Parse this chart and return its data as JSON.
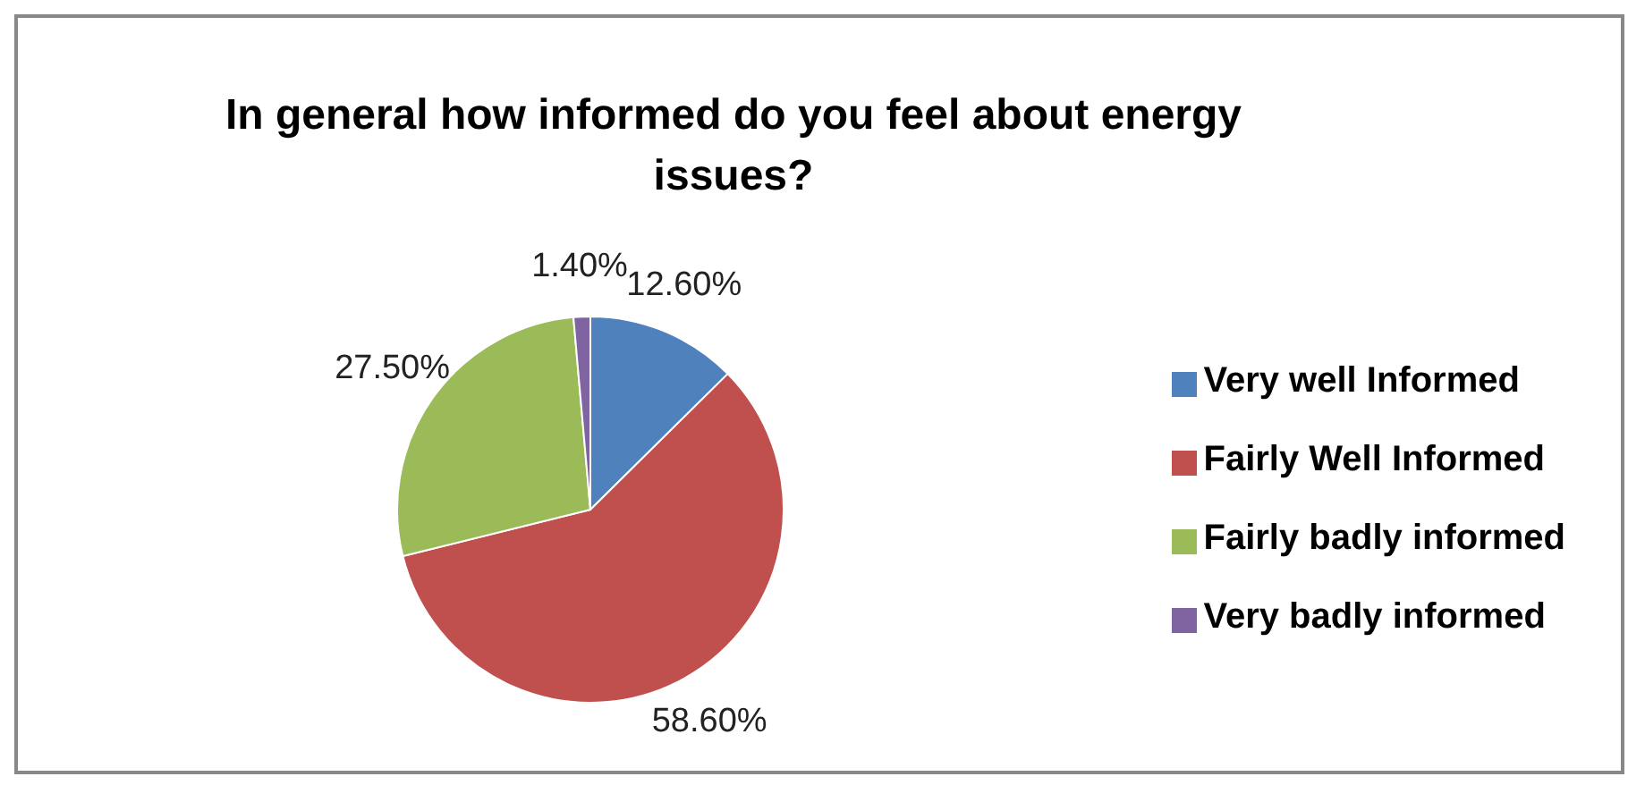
{
  "chart_data": {
    "type": "pie",
    "title": "In general how informed do you feel about energy issues?",
    "categories": [
      "Very well Informed",
      "Fairly Well Informed",
      "Fairly badly informed",
      "Very badly informed"
    ],
    "values": [
      12.6,
      58.6,
      27.5,
      1.4
    ],
    "value_labels": [
      "12.60%",
      "58.60%",
      "27.50%",
      "1.40%"
    ],
    "colors": [
      "#4f81bd",
      "#c0504d",
      "#9bbb59",
      "#8064a2"
    ],
    "legend": "right"
  }
}
